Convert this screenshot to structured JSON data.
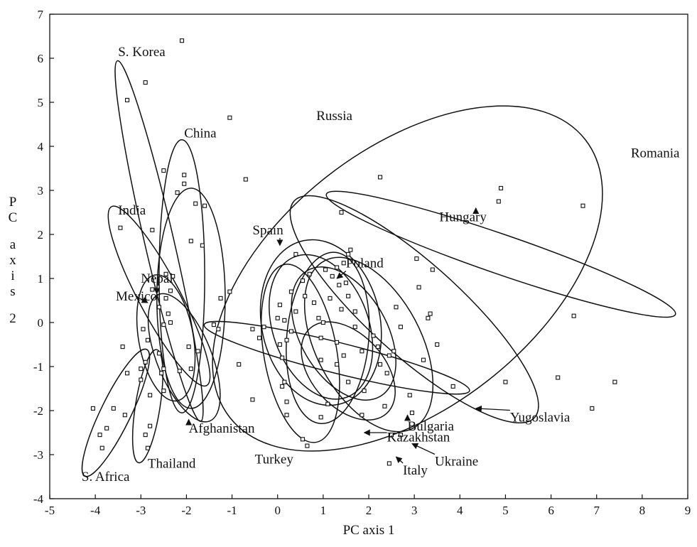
{
  "chart_data": {
    "type": "scatter",
    "title": "",
    "xlabel": "PC axis 1",
    "ylabel": "PC axis 2",
    "xlim": [
      -5,
      9
    ],
    "ylim": [
      -4,
      7
    ],
    "xticks": [
      -5,
      -4,
      -3,
      -2,
      -1,
      0,
      1,
      2,
      3,
      4,
      5,
      6,
      7,
      8,
      9
    ],
    "yticks": [
      -4,
      -3,
      -2,
      -1,
      0,
      1,
      2,
      3,
      4,
      5,
      6,
      7
    ],
    "grid": false,
    "legend": "none",
    "points": [
      [
        -2.1,
        6.4
      ],
      [
        -3.3,
        5.05
      ],
      [
        -2.9,
        5.45
      ],
      [
        -1.05,
        4.65
      ],
      [
        -0.7,
        3.25
      ],
      [
        -2.5,
        3.45
      ],
      [
        -2.05,
        3.35
      ],
      [
        -2.05,
        3.15
      ],
      [
        -2.2,
        2.95
      ],
      [
        -1.8,
        2.7
      ],
      [
        -1.6,
        2.65
      ],
      [
        -2.75,
        2.1
      ],
      [
        -1.9,
        1.85
      ],
      [
        -1.65,
        1.75
      ],
      [
        -3.45,
        2.15
      ],
      [
        -2.45,
        1.1
      ],
      [
        -2.3,
        1.05
      ],
      [
        -2.35,
        0.72
      ],
      [
        -2.75,
        0.75
      ],
      [
        -2.45,
        0.55
      ],
      [
        -2.6,
        0.35
      ],
      [
        -2.4,
        0.2
      ],
      [
        -2.35,
        0.0
      ],
      [
        -2.5,
        -0.05
      ],
      [
        -2.85,
        -0.4
      ],
      [
        -2.6,
        -0.7
      ],
      [
        -1.4,
        -0.05
      ],
      [
        -1.3,
        -0.15
      ],
      [
        -1.25,
        0.55
      ],
      [
        -1.05,
        0.7
      ],
      [
        -2.95,
        -0.15
      ],
      [
        -3.4,
        -0.55
      ],
      [
        -3.3,
        -1.15
      ],
      [
        -3.0,
        -1.05
      ],
      [
        -2.9,
        -0.9
      ],
      [
        -3.0,
        -1.3
      ],
      [
        -3.6,
        -1.95
      ],
      [
        -3.35,
        -2.1
      ],
      [
        -4.05,
        -1.95
      ],
      [
        -3.9,
        -2.55
      ],
      [
        -3.75,
        -2.4
      ],
      [
        -3.85,
        -2.85
      ],
      [
        -2.9,
        -2.55
      ],
      [
        -2.85,
        -2.85
      ],
      [
        -2.8,
        -2.35
      ],
      [
        -2.8,
        -1.65
      ],
      [
        -2.55,
        -1.15
      ],
      [
        -2.5,
        -1.05
      ],
      [
        -2.15,
        -1.1
      ],
      [
        -1.95,
        -0.55
      ],
      [
        -1.75,
        -0.65
      ],
      [
        -1.9,
        -1.05
      ],
      [
        -2.5,
        -1.55
      ],
      [
        -0.85,
        -0.95
      ],
      [
        -0.55,
        -0.15
      ],
      [
        -0.55,
        -1.75
      ],
      [
        0.05,
        0.4
      ],
      [
        0.15,
        0.05
      ],
      [
        0.2,
        -0.4
      ],
      [
        0.3,
        0.7
      ],
      [
        0.4,
        0.25
      ],
      [
        0.4,
        1.55
      ],
      [
        0.55,
        0.95
      ],
      [
        0.6,
        0.6
      ],
      [
        0.7,
        1.1
      ],
      [
        0.8,
        0.45
      ],
      [
        0.9,
        0.1
      ],
      [
        0.95,
        -0.35
      ],
      [
        0.95,
        -0.85
      ],
      [
        1.05,
        1.2
      ],
      [
        1.15,
        0.55
      ],
      [
        1.2,
        1.05
      ],
      [
        1.3,
        1.25
      ],
      [
        1.35,
        0.85
      ],
      [
        1.45,
        1.35
      ],
      [
        1.5,
        0.9
      ],
      [
        1.55,
        1.55
      ],
      [
        1.6,
        1.65
      ],
      [
        1.55,
        0.6
      ],
      [
        1.7,
        0.25
      ],
      [
        1.4,
        0.3
      ],
      [
        1.3,
        -0.45
      ],
      [
        1.3,
        -0.95
      ],
      [
        1.45,
        -0.75
      ],
      [
        1.7,
        -0.1
      ],
      [
        1.85,
        -0.65
      ],
      [
        1.9,
        -1.55
      ],
      [
        2.1,
        -0.3
      ],
      [
        2.2,
        -0.55
      ],
      [
        2.25,
        -0.95
      ],
      [
        2.4,
        -1.15
      ],
      [
        2.45,
        -0.75
      ],
      [
        2.55,
        -0.65
      ],
      [
        2.6,
        0.35
      ],
      [
        2.7,
        -0.1
      ],
      [
        2.5,
        -2.55
      ],
      [
        2.9,
        -1.65
      ],
      [
        3.05,
        1.45
      ],
      [
        3.1,
        0.8
      ],
      [
        3.2,
        -0.85
      ],
      [
        3.3,
        0.1
      ],
      [
        3.35,
        0.2
      ],
      [
        3.4,
        1.2
      ],
      [
        3.5,
        -0.5
      ],
      [
        3.85,
        -1.45
      ],
      [
        4.85,
        2.75
      ],
      [
        4.9,
        3.05
      ],
      [
        5.0,
        -1.35
      ],
      [
        6.5,
        0.15
      ],
      [
        6.7,
        2.65
      ],
      [
        6.15,
        -1.25
      ],
      [
        6.9,
        -1.95
      ],
      [
        7.4,
        -1.35
      ],
      [
        1.4,
        2.5
      ],
      [
        2.25,
        3.3
      ],
      [
        0.1,
        -0.8
      ],
      [
        0.15,
        -1.35
      ],
      [
        0.1,
        -1.45
      ],
      [
        0.2,
        -1.8
      ],
      [
        0.2,
        -2.1
      ],
      [
        0.55,
        -2.65
      ],
      [
        0.65,
        -2.8
      ],
      [
        0.95,
        -2.15
      ],
      [
        1.1,
        -1.85
      ],
      [
        1.55,
        -1.35
      ],
      [
        1.85,
        -2.1
      ],
      [
        2.35,
        -1.9
      ],
      [
        2.45,
        -3.2
      ],
      [
        2.7,
        -2.55
      ],
      [
        2.95,
        -2.05
      ],
      [
        1.0,
        0.0
      ],
      [
        0.0,
        0.1
      ],
      [
        -0.4,
        -0.35
      ],
      [
        -0.3,
        -0.1
      ],
      [
        0.3,
        -0.2
      ],
      [
        0.05,
        -0.5
      ]
    ],
    "regions": [
      {
        "label": "S. Korea",
        "cx": -2.6,
        "cy": 1.85,
        "rx": 0.32,
        "ry": 4.2,
        "angle": -13
      },
      {
        "label": "China",
        "cx": -2.1,
        "cy": 1.05,
        "rx": 0.5,
        "ry": 3.1,
        "angle": 0
      },
      {
        "label": "Russia",
        "cx": 2.85,
        "cy": 1.0,
        "rx": 4.95,
        "ry": 2.95,
        "angle": -38
      },
      {
        "label": "Romania",
        "cx": 4.9,
        "cy": 1.55,
        "rx": 4.05,
        "ry": 0.45,
        "angle": 19
      },
      {
        "label": "Hungary",
        "cx": 3.0,
        "cy": 0.3,
        "rx": 3.55,
        "ry": 1.05,
        "angle": 42
      },
      {
        "label": "India",
        "cx": -2.6,
        "cy": 0.6,
        "rx": 0.45,
        "ry": 2.3,
        "angle": -28
      },
      {
        "label": "Nepal",
        "cx": -2.05,
        "cy": -0.8,
        "rx": 0.6,
        "ry": 1.55,
        "angle": -22
      },
      {
        "label": "Mexico",
        "cx": -2.45,
        "cy": -0.35,
        "rx": 0.6,
        "ry": 1.45,
        "angle": -10
      },
      {
        "label": "Afghanistan",
        "cx": -1.9,
        "cy": 0.55,
        "rx": 0.75,
        "ry": 2.5,
        "angle": 0
      },
      {
        "label": "S. Africa",
        "cx": -3.55,
        "cy": -2.05,
        "rx": 0.33,
        "ry": 1.6,
        "angle": 26
      },
      {
        "label": "Thailand",
        "cx": -2.85,
        "cy": -1.9,
        "rx": 0.27,
        "ry": 1.3,
        "angle": 9
      },
      {
        "label": "Spain",
        "cx": 0.95,
        "cy": 0.0,
        "rx": 1.3,
        "ry": 1.9,
        "angle": -12
      },
      {
        "label": "Poland",
        "cx": 0.95,
        "cy": -0.1,
        "rx": 1.05,
        "ry": 1.7,
        "angle": -20
      },
      {
        "label": "Yugoslavia",
        "cx": 1.3,
        "cy": -0.8,
        "rx": 3.0,
        "ry": 0.35,
        "angle": 14
      },
      {
        "label": "Turkey",
        "cx": 0.5,
        "cy": -0.7,
        "rx": 0.8,
        "ry": 2.05,
        "angle": -10
      },
      {
        "label": "Bulgaria",
        "cx": 1.1,
        "cy": -0.35,
        "rx": 0.9,
        "ry": 1.95,
        "angle": 5
      },
      {
        "label": "Kazakhstan",
        "cx": 1.45,
        "cy": -0.25,
        "rx": 0.95,
        "ry": 1.65,
        "angle": -30
      },
      {
        "label": "Ukraine",
        "cx": 2.0,
        "cy": -0.5,
        "rx": 1.15,
        "ry": 2.15,
        "angle": -28
      },
      {
        "label": "Italy",
        "cx": 1.55,
        "cy": -1.1,
        "rx": 0.8,
        "ry": 1.3,
        "angle": -42
      }
    ],
    "labels": [
      {
        "text": "S. Korea",
        "x": -3.5,
        "y": 6.05,
        "arrow": null
      },
      {
        "text": "China",
        "x": -2.05,
        "y": 4.2,
        "arrow": null
      },
      {
        "text": "Russia",
        "x": 0.85,
        "y": 4.6,
        "arrow": null
      },
      {
        "text": "Romania",
        "x": 7.75,
        "y": 3.75,
        "arrow": null
      },
      {
        "text": "Hungary",
        "x": 3.55,
        "y": 2.3,
        "arrow": [
          4.35,
          2.6
        ]
      },
      {
        "text": "India",
        "x": -3.5,
        "y": 2.45,
        "arrow": null
      },
      {
        "text": "Spain",
        "x": -0.55,
        "y": 2.0,
        "arrow": [
          0.05,
          1.75
        ]
      },
      {
        "text": "Poland",
        "x": 1.5,
        "y": 1.25,
        "arrow": [
          1.3,
          1.0
        ]
      },
      {
        "text": "Nepal",
        "x": -3.0,
        "y": 0.9,
        "arrow": [
          -2.65,
          0.65
        ]
      },
      {
        "text": "Mexico",
        "x": -3.55,
        "y": 0.5,
        "arrow": [
          -2.85,
          0.45
        ]
      },
      {
        "text": "Yugoslavia",
        "x": 5.1,
        "y": -2.25,
        "arrow": [
          4.35,
          -1.95
        ]
      },
      {
        "text": "Bulgaria",
        "x": 2.85,
        "y": -2.45,
        "arrow": [
          2.85,
          -2.1
        ]
      },
      {
        "text": "Kazakhstan",
        "x": 2.4,
        "y": -2.7,
        "arrow": [
          1.9,
          -2.5
        ]
      },
      {
        "text": "Afghanistan",
        "x": -1.95,
        "y": -2.5,
        "arrow": [
          -1.95,
          -2.2
        ]
      },
      {
        "text": "Thailand",
        "x": -2.85,
        "y": -3.3,
        "arrow": null
      },
      {
        "text": "S. Africa",
        "x": -4.3,
        "y": -3.6,
        "arrow": null
      },
      {
        "text": "Turkey",
        "x": -0.5,
        "y": -3.2,
        "arrow": null
      },
      {
        "text": "Ukraine",
        "x": 3.45,
        "y": -3.25,
        "arrow": [
          2.95,
          -2.75
        ]
      },
      {
        "text": "Italy",
        "x": 2.75,
        "y": -3.45,
        "arrow": [
          2.6,
          -3.05
        ]
      }
    ]
  }
}
